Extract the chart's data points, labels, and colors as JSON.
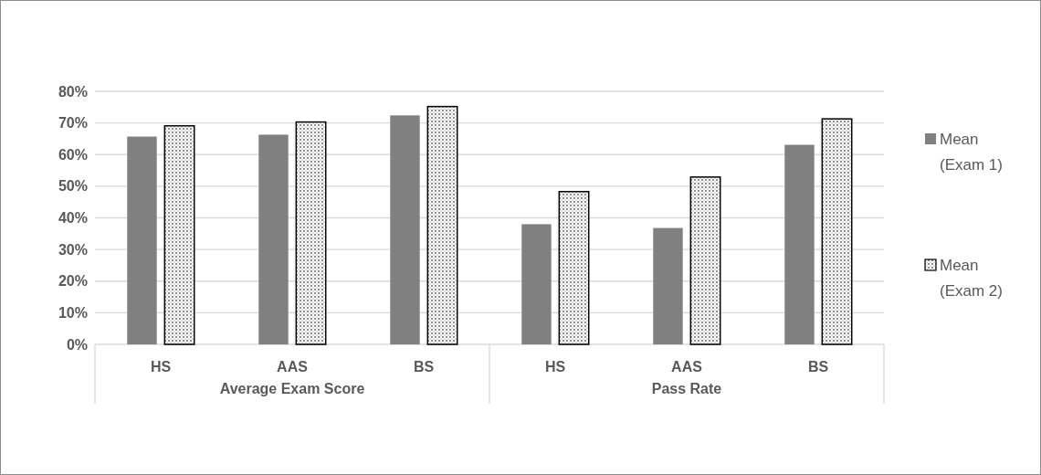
{
  "chart_data": {
    "type": "bar",
    "categories": [
      "HS",
      "AAS",
      "BS",
      "HS",
      "AAS",
      "BS"
    ],
    "annotations": [
      "Average Exam Score",
      "Pass Rate"
    ],
    "series": [
      {
        "name": "Mean (Exam 1)",
        "color": "#808080",
        "values": [
          65.7,
          66.3,
          72.4,
          38.0,
          36.8,
          63.1
        ]
      },
      {
        "name": "Mean (Exam 2)",
        "color": "#000000",
        "values": [
          69.1,
          70.3,
          75.2,
          48.3,
          52.9,
          71.3
        ]
      }
    ],
    "ylim": [
      0,
      80
    ],
    "yticks": [
      {
        "value": 0,
        "label": "0%"
      },
      {
        "value": 10,
        "label": "10%"
      },
      {
        "value": 20,
        "label": "20%"
      },
      {
        "value": 30,
        "label": "30%"
      },
      {
        "value": 40,
        "label": "40%"
      },
      {
        "value": 50,
        "label": "50%"
      },
      {
        "value": 60,
        "label": "60%"
      },
      {
        "value": 70,
        "label": "70%"
      },
      {
        "value": 80,
        "label": "80%"
      }
    ],
    "grid": "y",
    "legend": "right"
  }
}
